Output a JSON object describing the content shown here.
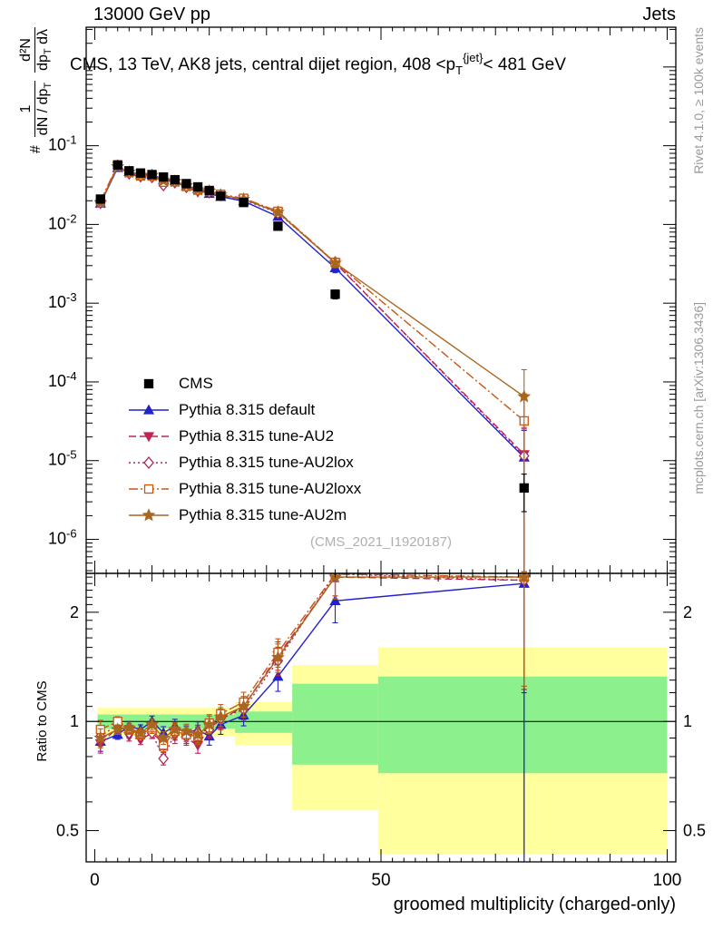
{
  "header": {
    "left": "13000 GeV pp",
    "right": "Jets"
  },
  "title": {
    "pre": "CMS, 13 TeV, AK8 jets, central dijet region, 408 <p",
    "sub": "T",
    "sup": "{jet}",
    "post": "< 481 GeV"
  },
  "ylabel": {
    "prefix": "#",
    "f1num": "1",
    "f1den_a": "dN / dp",
    "f1den_sub": "T",
    "f2num": "d²N",
    "f2den_a": "dp",
    "f2den_sub": "T",
    "f2den_b": " dλ"
  },
  "ratio_ylabel": "Ratio to CMS",
  "xlabel": "groomed multiplicity (charged-only)",
  "watermark": "(CMS_2021_I1920187)",
  "side_texts": {
    "rivet": "Rivet 4.1.0, ≥ 100k events",
    "mcplots": "mcplots.cern.ch [arXiv:1306.3436]"
  },
  "chart_data": {
    "type": "line",
    "title": "CMS, 13 TeV, AK8 jets, central dijet region, 408 < pT{jet} < 481 GeV",
    "xlabel": "groomed multiplicity (charged-only)",
    "ratio_label": "Ratio to CMS",
    "grid": false,
    "legend_position": "inside-left",
    "xlim": [
      -1.5,
      101.5
    ],
    "main_ylim": [
      3.7e-07,
      3.2
    ],
    "ratio_ylim": [
      0.41,
      2.56
    ],
    "xticks_major": [
      0,
      50,
      100
    ],
    "main_yticks_exponents": [
      -1,
      -2,
      -3,
      -4,
      -5,
      -6
    ],
    "ratio_yticks": [
      0.5,
      1,
      2
    ],
    "ratio_yticks_minor": [
      0.6,
      0.7,
      0.8,
      0.9,
      1.1,
      1.2,
      1.3,
      1.4,
      1.5,
      1.6,
      1.7,
      1.8,
      1.9,
      2.1,
      2.2,
      2.3,
      2.4,
      2.5
    ],
    "x": [
      1,
      4,
      6,
      8,
      10,
      12,
      14,
      16,
      18,
      20,
      22,
      26,
      32,
      42,
      75
    ],
    "rel_err": [
      0.06,
      0.03,
      0.03,
      0.03,
      0.035,
      0.04,
      0.045,
      0.045,
      0.05,
      0.055,
      0.06,
      0.065,
      0.09,
      0.13,
      0.5
    ],
    "series": [
      {
        "id": "cms",
        "name": "CMS",
        "color": "#000000",
        "marker": "square",
        "filled": true,
        "line": false,
        "dash": "",
        "values": [
          0.021,
          0.057,
          0.048,
          0.045,
          0.043,
          0.04,
          0.037,
          0.033,
          0.03,
          0.027,
          0.023,
          0.019,
          0.0095,
          0.0013,
          4.5e-06
        ]
      },
      {
        "id": "default",
        "name": "Pythia 8.315 default",
        "color": "#2222cc",
        "marker": "triangle-up",
        "filled": true,
        "line": true,
        "dash": "",
        "values": [
          0.0185,
          0.0524,
          0.0466,
          0.0428,
          0.043,
          0.0372,
          0.0359,
          0.0307,
          0.0285,
          0.0246,
          0.0225,
          0.0198,
          0.0126,
          0.0028,
          1.1e-05
        ],
        "ratio": [
          0.88,
          0.92,
          0.97,
          0.95,
          1.0,
          0.93,
          0.97,
          0.93,
          0.95,
          0.91,
          0.98,
          1.04,
          1.33,
          2.15,
          2.4
        ]
      },
      {
        "id": "au2",
        "name": "Pythia 8.315 tune-AU2",
        "color": "#c12552",
        "marker": "triangle-down",
        "filled": true,
        "line": true,
        "dash": "8,4",
        "values": [
          0.0183,
          0.0547,
          0.0437,
          0.0401,
          0.04,
          0.0348,
          0.0337,
          0.0297,
          0.0258,
          0.0259,
          0.0232,
          0.0209,
          0.0144,
          0.00325,
          1.2e-05
        ],
        "ratio": [
          0.87,
          0.96,
          0.91,
          0.89,
          0.93,
          0.87,
          0.91,
          0.9,
          0.86,
          0.96,
          1.01,
          1.1,
          1.52,
          2.5,
          2.45
        ]
      },
      {
        "id": "au2lox",
        "name": "Pythia 8.315 tune-AU2lox",
        "color": "#b02458",
        "marker": "diamond",
        "filled": false,
        "line": true,
        "dash": "2,3",
        "values": [
          0.0191,
          0.0559,
          0.0446,
          0.041,
          0.04,
          0.0316,
          0.0344,
          0.03,
          0.0279,
          0.0257,
          0.0235,
          0.0205,
          0.014,
          0.0033,
          1.15e-05
        ],
        "ratio": [
          0.91,
          0.98,
          0.93,
          0.91,
          0.93,
          0.79,
          0.93,
          0.91,
          0.93,
          0.95,
          1.02,
          1.08,
          1.47,
          2.55,
          2.45
        ]
      },
      {
        "id": "au2loxx",
        "name": "Pythia 8.315 tune-AU2loxx",
        "color": "#cc5510",
        "marker": "square",
        "filled": false,
        "line": true,
        "dash": "10,3,2,3",
        "values": [
          0.02,
          0.057,
          0.0456,
          0.0414,
          0.0413,
          0.0344,
          0.0348,
          0.0304,
          0.0273,
          0.0267,
          0.0242,
          0.0215,
          0.0147,
          0.0033,
          3.2e-05
        ],
        "ratio": [
          0.95,
          1.0,
          0.95,
          0.92,
          0.96,
          0.86,
          0.94,
          0.92,
          0.91,
          0.99,
          1.05,
          1.13,
          1.55,
          2.55,
          2.5
        ]
      },
      {
        "id": "au2m",
        "name": "Pythia 8.315 tune-AU2m",
        "color": "#a9661f",
        "marker": "star",
        "filled": true,
        "line": true,
        "dash": "",
        "values": [
          0.0189,
          0.0542,
          0.0461,
          0.0419,
          0.0421,
          0.036,
          0.0352,
          0.031,
          0.0276,
          0.0265,
          0.0237,
          0.0209,
          0.0143,
          0.00325,
          6.5e-05
        ],
        "ratio": [
          0.9,
          0.95,
          0.96,
          0.93,
          0.98,
          0.9,
          0.95,
          0.94,
          0.92,
          0.98,
          1.03,
          1.1,
          1.5,
          2.5,
          2.5
        ]
      }
    ],
    "bands": [
      {
        "x0": 0.5,
        "x1": 24.5,
        "yellow": [
          0.91,
          1.09
        ],
        "green": [
          0.955,
          1.045
        ]
      },
      {
        "x0": 24.5,
        "x1": 34.5,
        "yellow": [
          0.86,
          1.13
        ],
        "green": [
          0.93,
          1.065
        ]
      },
      {
        "x0": 34.5,
        "x1": 49.5,
        "yellow": [
          0.57,
          1.43
        ],
        "green": [
          0.76,
          1.27
        ]
      },
      {
        "x0": 49.5,
        "x1": 100.0,
        "yellow": [
          0.43,
          1.6
        ],
        "green": [
          0.72,
          1.33
        ]
      }
    ],
    "band_colors": {
      "yellow": "#ffff9e",
      "green": "#8cf08c"
    },
    "ratio_vline": {
      "x": 75,
      "color": "#2222cc"
    }
  }
}
